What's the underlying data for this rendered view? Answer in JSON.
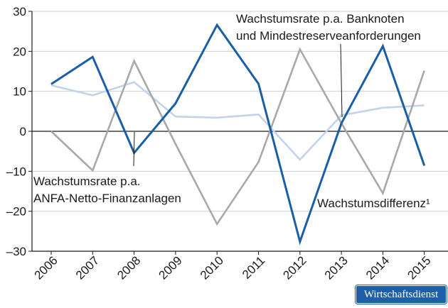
{
  "chart_data": {
    "type": "line",
    "categories": [
      "2006",
      "2007",
      "2008",
      "2009",
      "2010",
      "2011",
      "2012",
      "2013",
      "2014",
      "2015"
    ],
    "ylim": [
      -30,
      30
    ],
    "yticks": [
      30,
      20,
      10,
      0,
      -10,
      -20,
      -30
    ],
    "ytick_labels": [
      "30",
      "20",
      "10",
      "0",
      "–10",
      "–20",
      "–30"
    ],
    "grid": true,
    "series": [
      {
        "key": "banknoten",
        "color": "#1a5fa6",
        "values": [
          11.8,
          18.6,
          -5.4,
          7.0,
          26.6,
          11.9,
          -27.6,
          2.0,
          21.3,
          -8.6
        ]
      },
      {
        "key": "anfa",
        "color": "#a9a9a9",
        "values": [
          0.0,
          -9.8,
          17.6,
          -3.2,
          -23.2,
          -7.7,
          20.5,
          2.0,
          -15.5,
          15.2
        ]
      },
      {
        "key": "differenz",
        "color": "#c3d4ea",
        "values": [
          11.5,
          9.0,
          12.3,
          3.7,
          3.4,
          4.2,
          -7.1,
          4.0,
          5.9,
          6.5
        ]
      }
    ],
    "annotations": {
      "banknoten_line1": "Wachstumsrate p.a. Banknoten",
      "banknoten_line2": "und Mindestreserveanforderungen",
      "anfa_line1": "Wachstumsrate p.a.",
      "anfa_line2": "ANFA-Netto-Finanzanlagen",
      "differenz": "Wachstumsdifferenz¹"
    }
  },
  "logo_text": "Wirtschaftsdienst"
}
